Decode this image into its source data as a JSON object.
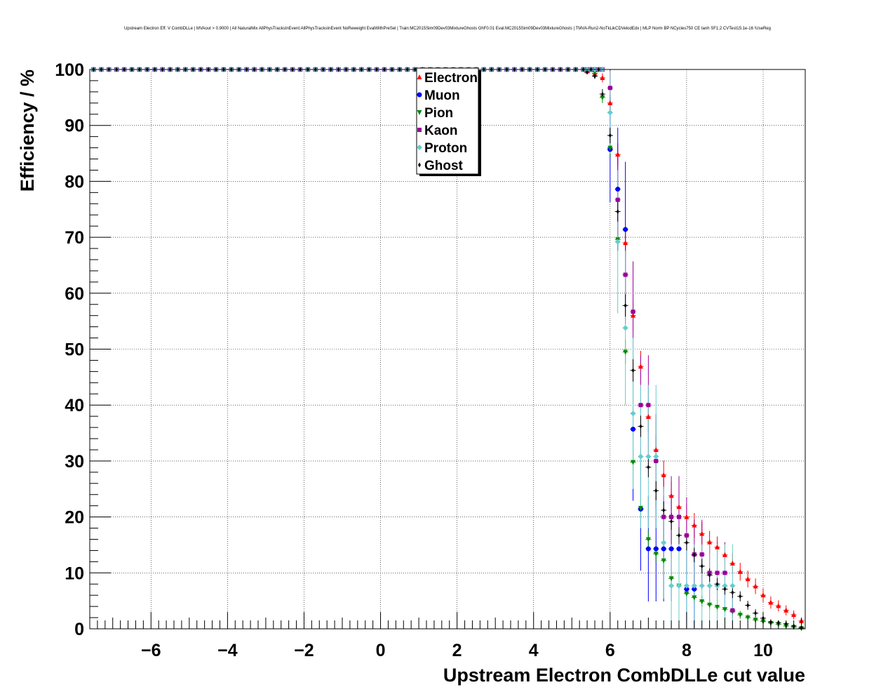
{
  "chart_data": {
    "type": "scatter",
    "title": "Upstream Electron Eff. V CombDLLe | MVAout > 0.9000 | All NaturalMix AllPhysTracksInEvent:AllPhysTracksInEvent NoReweight EvalWithPreSel | Train:MC2015Sim09Dev03MixtureGhosts GhF0.01 Eval:MC2015Sim09Dev03MixtureGhosts | TMVA-Run2-NoTkLikCDVelodEdx | MLP Norm BP NCycles750 CE tanh SF1.2 CVTest15:1e-16 !UseReg",
    "xlabel": "Upstream Electron CombDLLe cut value",
    "ylabel": "Efficiency / %",
    "xlim": [
      -7.6,
      11.1
    ],
    "ylim": [
      0,
      100
    ],
    "x_ticks": [
      -6,
      -4,
      -2,
      0,
      2,
      4,
      6,
      8,
      10
    ],
    "x_tick_labels": [
      "−6",
      "−4",
      "−2",
      "0",
      "2",
      "4",
      "6",
      "8",
      "10"
    ],
    "y_ticks": [
      0,
      10,
      20,
      30,
      40,
      50,
      60,
      70,
      80,
      90,
      100
    ],
    "y_tick_labels": [
      "0",
      "10",
      "20",
      "30",
      "40",
      "50",
      "60",
      "70",
      "80",
      "90",
      "100"
    ],
    "grid": true,
    "legend_position": "top-center",
    "flat_region": {
      "x_start": -7.5,
      "x_end": 5.8,
      "step": 0.2,
      "y": 100
    },
    "series": [
      {
        "name": "Electron",
        "color": "#ff0000",
        "marker": "triangle-up",
        "x": [
          5.4,
          5.6,
          5.8,
          6.0,
          6.2,
          6.4,
          6.6,
          6.8,
          7.0,
          7.2,
          7.4,
          7.6,
          7.8,
          8.0,
          8.2,
          8.4,
          8.6,
          8.8,
          9.0,
          9.2,
          9.4,
          9.6,
          9.8,
          10.0,
          10.2,
          10.4,
          10.6,
          10.8,
          11.0
        ],
        "y": [
          99.7,
          99.3,
          98.5,
          94.0,
          84.8,
          69.0,
          56.0,
          46.9,
          37.9,
          32.0,
          27.5,
          23.8,
          21.8,
          20.0,
          18.5,
          17.0,
          15.5,
          14.6,
          13.2,
          11.7,
          10.2,
          8.9,
          7.6,
          6.0,
          4.7,
          4.1,
          3.3,
          2.5,
          1.4
        ],
        "err": [
          0.3,
          0.5,
          0.8,
          1.5,
          2.0,
          2.5,
          2.7,
          2.8,
          2.8,
          2.7,
          2.6,
          2.5,
          2.4,
          2.3,
          2.2,
          2.1,
          2.0,
          1.9,
          1.8,
          1.7,
          1.6,
          1.5,
          1.4,
          1.2,
          1.1,
          1.0,
          0.9,
          0.8,
          0.6
        ]
      },
      {
        "name": "Muon",
        "color": "#0000ff",
        "marker": "circle",
        "x": [
          5.4,
          5.6,
          5.8,
          6.0,
          6.2,
          6.4,
          6.6,
          6.8,
          7.0,
          7.2,
          7.4,
          7.6,
          7.8,
          8.0,
          8.2
        ],
        "y": [
          100,
          100,
          100,
          85.7,
          78.6,
          71.4,
          35.7,
          21.4,
          14.3,
          14.3,
          14.3,
          14.3,
          14.3,
          7.1,
          7.1
        ],
        "err": [
          0.0,
          0.0,
          0.0,
          9.4,
          11.0,
          12.1,
          12.8,
          11.0,
          9.4,
          9.4,
          9.4,
          9.4,
          9.4,
          6.9,
          6.9
        ]
      },
      {
        "name": "Pion",
        "color": "#008800",
        "marker": "triangle-down",
        "x": [
          5.4,
          5.6,
          5.8,
          6.0,
          6.2,
          6.4,
          6.6,
          6.8,
          7.0,
          7.2,
          7.4,
          7.6,
          7.8,
          8.0,
          8.2,
          8.4,
          8.6,
          8.8,
          9.0,
          9.2,
          9.4,
          9.6,
          9.8,
          10.0,
          10.2,
          10.4,
          10.6,
          10.8,
          11.0
        ],
        "y": [
          100,
          99.6,
          95.0,
          86.0,
          69.6,
          49.5,
          29.8,
          21.6,
          16.0,
          13.4,
          12.2,
          9.0,
          7.7,
          6.3,
          5.6,
          4.9,
          4.3,
          3.9,
          3.5,
          3.1,
          2.5,
          2.0,
          1.6,
          1.3,
          1.0,
          0.8,
          0.5,
          0.3,
          0.1
        ],
        "err": [
          0.0,
          0.4,
          1.0,
          1.6,
          2.0,
          2.2,
          2.1,
          1.8,
          1.6,
          1.5,
          1.4,
          1.3,
          1.2,
          1.1,
          1.0,
          1.0,
          0.9,
          0.9,
          0.8,
          0.8,
          0.7,
          0.6,
          0.6,
          0.5,
          0.5,
          0.4,
          0.3,
          0.3,
          0.2
        ]
      },
      {
        "name": "Kaon",
        "color": "#990099",
        "marker": "square",
        "x": [
          5.4,
          5.6,
          5.8,
          6.0,
          6.2,
          6.4,
          6.6,
          6.8,
          7.0,
          7.2,
          7.4,
          7.6,
          7.8,
          8.0,
          8.2,
          8.4,
          8.6,
          8.8,
          9.0,
          9.2
        ],
        "y": [
          100,
          100,
          100,
          96.7,
          76.7,
          63.3,
          56.7,
          40.0,
          40.0,
          30.0,
          20.0,
          20.0,
          20.0,
          16.7,
          13.3,
          13.3,
          10.0,
          10.0,
          10.0,
          3.3
        ],
        "err": [
          0.0,
          0.0,
          0.0,
          3.3,
          7.7,
          8.8,
          9.0,
          8.9,
          8.9,
          8.4,
          7.3,
          7.3,
          7.3,
          6.8,
          6.2,
          6.2,
          5.5,
          5.5,
          5.5,
          3.3
        ]
      },
      {
        "name": "Proton",
        "color": "#66cccc",
        "marker": "diamond",
        "x": [
          5.4,
          5.6,
          5.8,
          6.0,
          6.2,
          6.4,
          6.6,
          6.8,
          7.0,
          7.2,
          7.4,
          7.6,
          7.8,
          8.0,
          8.2,
          8.4,
          8.6,
          8.8,
          9.0,
          9.2
        ],
        "y": [
          100,
          100,
          100,
          92.3,
          69.2,
          53.8,
          38.5,
          30.8,
          30.8,
          30.8,
          15.4,
          7.7,
          7.7,
          7.7,
          7.7,
          7.7,
          7.7,
          7.7,
          7.7,
          7.7
        ],
        "err": [
          0.0,
          0.0,
          0.0,
          7.4,
          12.8,
          13.8,
          13.5,
          12.8,
          12.8,
          12.8,
          10.0,
          7.4,
          7.4,
          7.4,
          7.4,
          7.4,
          7.4,
          7.4,
          7.4,
          7.4
        ]
      },
      {
        "name": "Ghost",
        "color": "#000000",
        "marker": "cross",
        "x": [
          5.4,
          5.6,
          5.8,
          6.0,
          6.2,
          6.4,
          6.6,
          6.8,
          7.0,
          7.2,
          7.4,
          7.6,
          7.8,
          8.0,
          8.2,
          8.4,
          8.6,
          8.8,
          9.0,
          9.2,
          9.4,
          9.6,
          9.8,
          10.0,
          10.2,
          10.4,
          10.6,
          10.8,
          11.0
        ],
        "y": [
          99.5,
          98.8,
          95.6,
          88.2,
          74.6,
          57.8,
          46.2,
          36.2,
          28.9,
          24.7,
          21.2,
          19.2,
          16.7,
          15.4,
          13.2,
          11.2,
          9.6,
          8.0,
          7.1,
          6.5,
          5.8,
          4.2,
          2.8,
          1.9,
          1.2,
          1.1,
          0.9,
          0.5,
          0.2
        ],
        "err": [
          0.3,
          0.5,
          0.9,
          1.4,
          1.8,
          2.0,
          2.0,
          1.9,
          1.8,
          1.7,
          1.6,
          1.5,
          1.5,
          1.4,
          1.3,
          1.3,
          1.2,
          1.1,
          1.0,
          1.0,
          0.9,
          0.8,
          0.7,
          0.6,
          0.5,
          0.4,
          0.4,
          0.3,
          0.2
        ]
      }
    ]
  }
}
